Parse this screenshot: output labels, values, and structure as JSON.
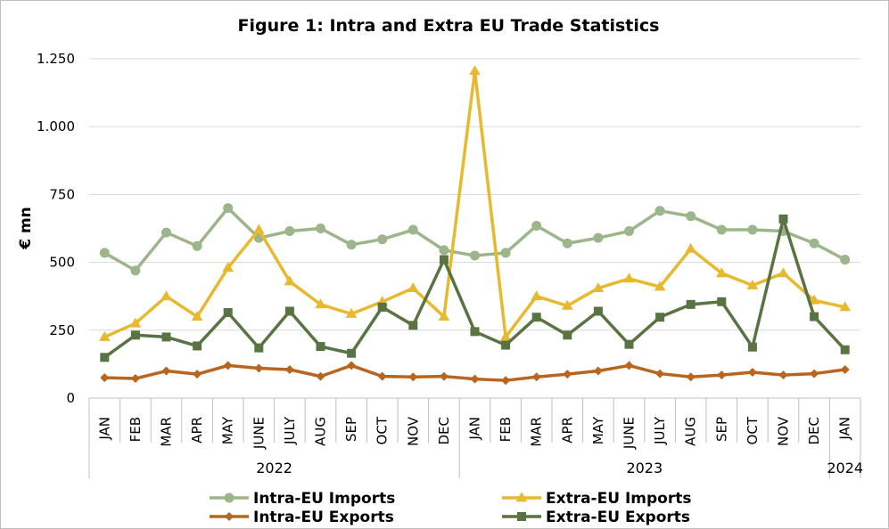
{
  "chart_data": {
    "type": "line",
    "title": "Figure 1: Intra and Extra EU Trade Statistics",
    "ylabel": "€ mn",
    "xlabel": "",
    "ylim": [
      0,
      1250
    ],
    "yticks": [
      0,
      250,
      500,
      750,
      1000,
      1250
    ],
    "ytick_labels": [
      "0",
      "250",
      "500",
      "750",
      "1.000",
      "1.250"
    ],
    "categories": [
      "JAN",
      "FEB",
      "MAR",
      "APR",
      "MAY",
      "JUNE",
      "JULY",
      "AUG",
      "SEP",
      "OCT",
      "NOV",
      "DEC",
      "JAN",
      "FEB",
      "MAR",
      "APR",
      "MAY",
      "JUNE",
      "JULY",
      "AUG",
      "SEP",
      "OCT",
      "NOV",
      "DEC",
      "JAN"
    ],
    "year_groups": [
      {
        "label": "2022",
        "start": 0,
        "end": 11
      },
      {
        "label": "2023",
        "start": 12,
        "end": 23
      },
      {
        "label": "2024",
        "start": 24,
        "end": 24
      }
    ],
    "grid": true,
    "legend_position": "bottom",
    "series": [
      {
        "name": "Intra-EU Imports",
        "color": "#9cb58a",
        "marker": "circle",
        "values": [
          535,
          470,
          610,
          560,
          700,
          590,
          615,
          625,
          565,
          585,
          620,
          545,
          525,
          535,
          635,
          570,
          590,
          615,
          690,
          670,
          620,
          620,
          615,
          570,
          510
        ]
      },
      {
        "name": "Extra-EU Imports",
        "color": "#e6b92e",
        "marker": "triangle",
        "values": [
          225,
          275,
          375,
          300,
          480,
          620,
          430,
          345,
          310,
          355,
          405,
          300,
          1205,
          225,
          375,
          340,
          405,
          440,
          410,
          550,
          460,
          415,
          460,
          360,
          335
        ]
      },
      {
        "name": "Intra-EU Exports",
        "color": "#b9651e",
        "marker": "diamond",
        "values": [
          75,
          72,
          100,
          88,
          120,
          110,
          105,
          80,
          120,
          80,
          78,
          80,
          70,
          65,
          78,
          88,
          100,
          120,
          90,
          78,
          85,
          95,
          85,
          90,
          105
        ]
      },
      {
        "name": "Extra-EU Exports",
        "color": "#5a7343",
        "marker": "square",
        "values": [
          150,
          232,
          225,
          192,
          315,
          185,
          320,
          190,
          165,
          335,
          268,
          510,
          245,
          195,
          298,
          232,
          320,
          198,
          298,
          345,
          355,
          188,
          660,
          300,
          178
        ]
      }
    ]
  }
}
